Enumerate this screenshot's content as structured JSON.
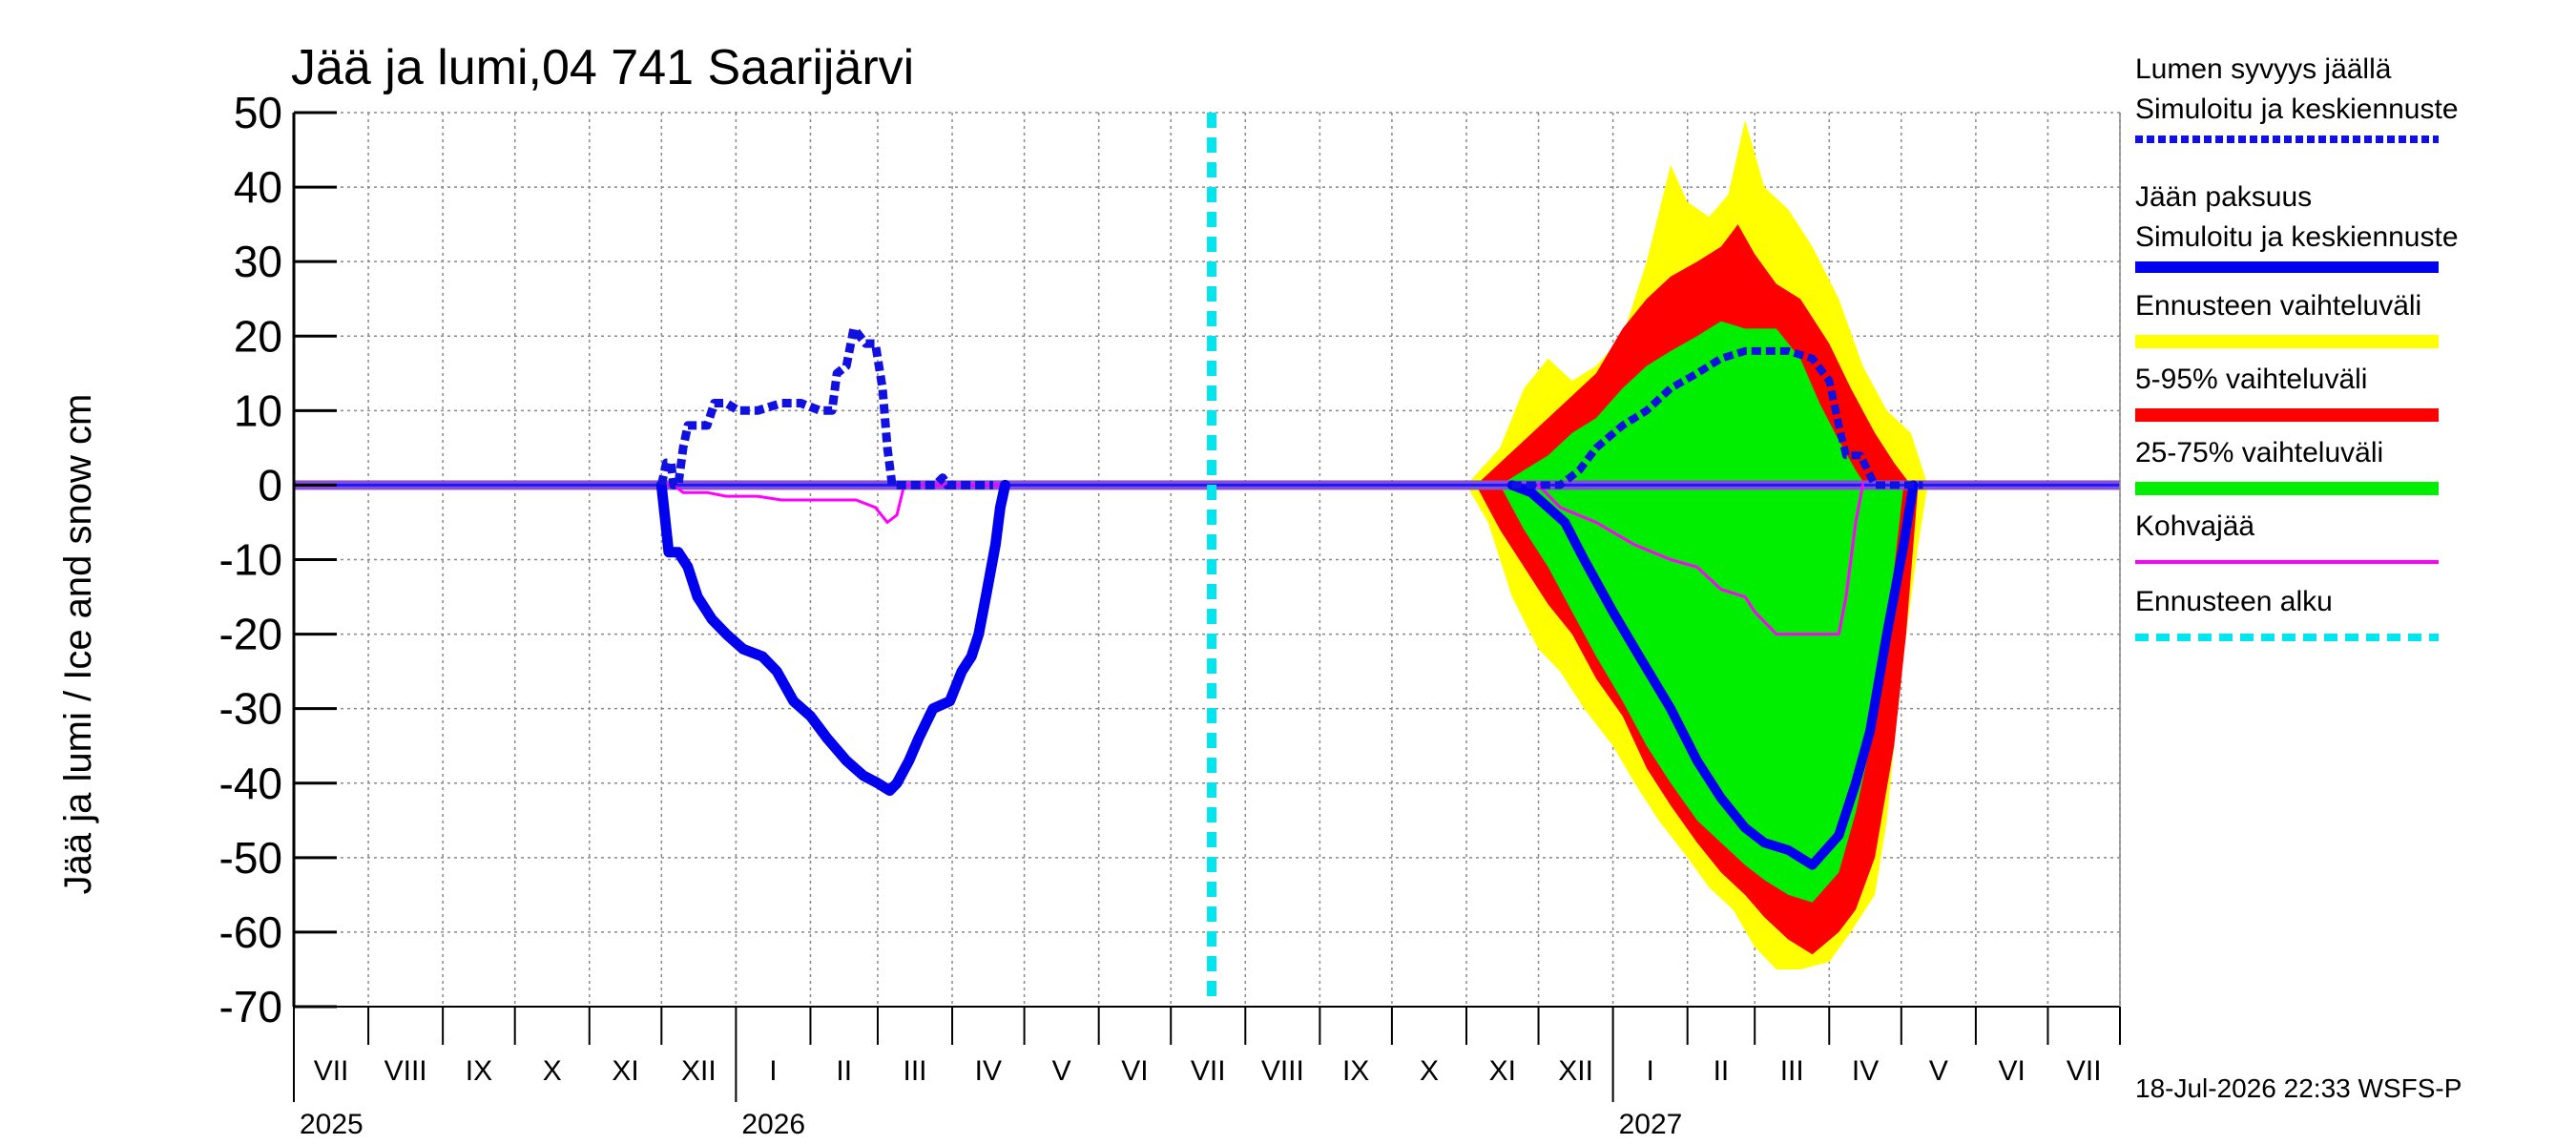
{
  "chart_data": {
    "type": "area",
    "title": "Jää ja lumi,04 741 Saarijärvi",
    "ylabel": "Jää ja lumi / Ice and snow    cm",
    "ylim": [
      -70,
      50
    ],
    "yticks": [
      50,
      40,
      30,
      20,
      10,
      0,
      -10,
      -20,
      -30,
      -40,
      -50,
      -60,
      -70
    ],
    "xlim": [
      "2025-07-01",
      "2027-07-31"
    ],
    "grid": true,
    "legend_position": "right",
    "months": [
      "VII",
      "VIII",
      "IX",
      "X",
      "XI",
      "XII",
      "I",
      "II",
      "III",
      "IV",
      "V",
      "VI",
      "VII",
      "VIII",
      "IX",
      "X",
      "XI",
      "XII",
      "I",
      "II",
      "III",
      "IV",
      "V",
      "VI",
      "VII"
    ],
    "years": [
      {
        "label": "2025",
        "date": "2025-07-01"
      },
      {
        "label": "2026",
        "date": "2026-01-01"
      },
      {
        "label": "2027",
        "date": "2027-01-01"
      }
    ],
    "forecast_start": "2026-07-18",
    "footer": "18-Jul-2026 22:33 WSFS-P",
    "colors": {
      "snow": "#1010e0",
      "ice": "#0000ee",
      "range_full": "#ffff00",
      "range_5_95": "#ff0000",
      "range_25_75": "#00ee00",
      "slush": "#ff00ff",
      "forecast_start": "#00e5ee",
      "zero_band": "#8a4fd8"
    },
    "legend": [
      {
        "line1": "Lumen syvyys jäällä",
        "line2": "Simuloitu ja keskiennuste",
        "color": "#1010e0",
        "style": "dotted"
      },
      {
        "line1": "Jään paksuus",
        "line2": "Simuloitu ja keskiennuste",
        "color": "#0000ee",
        "style": "solid"
      },
      {
        "line1": "Ennusteen vaihteluväli",
        "line2": "",
        "color": "#ffff00",
        "style": "thick"
      },
      {
        "line1": "5-95% vaihteluväli",
        "line2": "",
        "color": "#ff0000",
        "style": "thick"
      },
      {
        "line1": "25-75% vaihteluväli",
        "line2": "",
        "color": "#00ee00",
        "style": "thick"
      },
      {
        "line1": "Kohvajää",
        "line2": "",
        "color": "#ff00ff",
        "style": "thin"
      },
      {
        "line1": "Ennusteen alku",
        "line2": "",
        "color": "#00e5ee",
        "style": "dashed"
      }
    ],
    "series": [
      {
        "name": "Lumen syvyys jäällä",
        "role": "snow_history",
        "points": [
          [
            "2025-12-01",
            0
          ],
          [
            "2025-12-03",
            3
          ],
          [
            "2025-12-05",
            3
          ],
          [
            "2025-12-06",
            0
          ],
          [
            "2025-12-08",
            0
          ],
          [
            "2025-12-10",
            5
          ],
          [
            "2025-12-12",
            8
          ],
          [
            "2025-12-20",
            8
          ],
          [
            "2025-12-23",
            11
          ],
          [
            "2025-12-28",
            11
          ],
          [
            "2026-01-02",
            10
          ],
          [
            "2026-01-10",
            10
          ],
          [
            "2026-01-20",
            11
          ],
          [
            "2026-01-28",
            11
          ],
          [
            "2026-02-05",
            10
          ],
          [
            "2026-02-10",
            10
          ],
          [
            "2026-02-12",
            15
          ],
          [
            "2026-02-16",
            16
          ],
          [
            "2026-02-19",
            21
          ],
          [
            "2026-02-24",
            19
          ],
          [
            "2026-02-28",
            19
          ],
          [
            "2026-03-03",
            13
          ],
          [
            "2026-03-05",
            5
          ],
          [
            "2026-03-07",
            0
          ],
          [
            "2026-03-25",
            0
          ],
          [
            "2026-03-28",
            1
          ],
          [
            "2026-03-30",
            0
          ],
          [
            "2026-04-18",
            0
          ]
        ]
      },
      {
        "name": "Jään paksuus",
        "role": "ice_history",
        "points": [
          [
            "2025-12-01",
            0
          ],
          [
            "2025-12-04",
            -9
          ],
          [
            "2025-12-08",
            -9
          ],
          [
            "2025-12-12",
            -11
          ],
          [
            "2025-12-16",
            -15
          ],
          [
            "2025-12-22",
            -18
          ],
          [
            "2025-12-28",
            -20
          ],
          [
            "2026-01-04",
            -22
          ],
          [
            "2026-01-12",
            -23
          ],
          [
            "2026-01-18",
            -25
          ],
          [
            "2026-01-25",
            -29
          ],
          [
            "2026-02-01",
            -31
          ],
          [
            "2026-02-08",
            -34
          ],
          [
            "2026-02-16",
            -37
          ],
          [
            "2026-02-23",
            -39
          ],
          [
            "2026-03-01",
            -40
          ],
          [
            "2026-03-06",
            -41
          ],
          [
            "2026-03-09",
            -40
          ],
          [
            "2026-03-14",
            -37
          ],
          [
            "2026-03-18",
            -34
          ],
          [
            "2026-03-24",
            -30
          ],
          [
            "2026-03-31",
            -29
          ],
          [
            "2026-04-05",
            -25
          ],
          [
            "2026-04-09",
            -23
          ],
          [
            "2026-04-12",
            -20
          ],
          [
            "2026-04-15",
            -15
          ],
          [
            "2026-04-19",
            -8
          ],
          [
            "2026-04-21",
            -3
          ],
          [
            "2026-04-23",
            0
          ]
        ]
      },
      {
        "name": "Kohvajää",
        "role": "slush_history",
        "points": [
          [
            "2025-12-01",
            0
          ],
          [
            "2025-12-06",
            0
          ],
          [
            "2025-12-10",
            -1
          ],
          [
            "2025-12-20",
            -1
          ],
          [
            "2025-12-28",
            -1.5
          ],
          [
            "2026-01-10",
            -1.5
          ],
          [
            "2026-01-20",
            -2
          ],
          [
            "2026-02-20",
            -2
          ],
          [
            "2026-02-28",
            -3
          ],
          [
            "2026-03-05",
            -5
          ],
          [
            "2026-03-09",
            -4
          ],
          [
            "2026-03-12",
            0
          ],
          [
            "2026-04-23",
            0
          ]
        ]
      },
      {
        "name": "Ennusteen vaihteluväli",
        "role": "range_full",
        "upper": [
          [
            "2026-11-01",
            0
          ],
          [
            "2026-11-15",
            5
          ],
          [
            "2026-11-25",
            13
          ],
          [
            "2026-12-05",
            17
          ],
          [
            "2026-12-15",
            14
          ],
          [
            "2026-12-25",
            16
          ],
          [
            "2027-01-05",
            20
          ],
          [
            "2027-01-15",
            30
          ],
          [
            "2027-01-25",
            43
          ],
          [
            "2027-02-01",
            38
          ],
          [
            "2027-02-10",
            36
          ],
          [
            "2027-02-18",
            39
          ],
          [
            "2027-02-25",
            49
          ],
          [
            "2027-03-05",
            40
          ],
          [
            "2027-03-15",
            37
          ],
          [
            "2027-03-25",
            32
          ],
          [
            "2027-04-05",
            25
          ],
          [
            "2027-04-15",
            16
          ],
          [
            "2027-04-25",
            10
          ],
          [
            "2027-05-05",
            7
          ],
          [
            "2027-05-12",
            0
          ]
        ],
        "lower": [
          [
            "2026-11-01",
            0
          ],
          [
            "2026-11-10",
            -5
          ],
          [
            "2026-11-20",
            -15
          ],
          [
            "2026-12-01",
            -22
          ],
          [
            "2026-12-10",
            -25
          ],
          [
            "2026-12-20",
            -30
          ],
          [
            "2027-01-01",
            -35
          ],
          [
            "2027-01-10",
            -40
          ],
          [
            "2027-01-20",
            -45
          ],
          [
            "2027-02-01",
            -50
          ],
          [
            "2027-02-10",
            -54
          ],
          [
            "2027-02-20",
            -57
          ],
          [
            "2027-03-01",
            -62
          ],
          [
            "2027-03-10",
            -65
          ],
          [
            "2027-03-20",
            -65
          ],
          [
            "2027-04-01",
            -64
          ],
          [
            "2027-04-10",
            -60
          ],
          [
            "2027-04-20",
            -55
          ],
          [
            "2027-04-25",
            -45
          ],
          [
            "2027-05-01",
            -25
          ],
          [
            "2027-05-08",
            -8
          ],
          [
            "2027-05-12",
            0
          ]
        ]
      },
      {
        "name": "5-95% vaihteluväli",
        "role": "range_5_95",
        "upper": [
          [
            "2026-11-05",
            0
          ],
          [
            "2026-11-15",
            3
          ],
          [
            "2026-11-25",
            6
          ],
          [
            "2026-12-05",
            9
          ],
          [
            "2026-12-15",
            12
          ],
          [
            "2026-12-25",
            15
          ],
          [
            "2027-01-05",
            21
          ],
          [
            "2027-01-15",
            25
          ],
          [
            "2027-01-25",
            28
          ],
          [
            "2027-02-05",
            30
          ],
          [
            "2027-02-15",
            32
          ],
          [
            "2027-02-22",
            35
          ],
          [
            "2027-03-01",
            31
          ],
          [
            "2027-03-10",
            27
          ],
          [
            "2027-03-20",
            25
          ],
          [
            "2027-04-01",
            19
          ],
          [
            "2027-04-10",
            13
          ],
          [
            "2027-04-20",
            7
          ],
          [
            "2027-04-28",
            3
          ],
          [
            "2027-05-05",
            0
          ]
        ],
        "lower": [
          [
            "2026-11-05",
            0
          ],
          [
            "2026-11-15",
            -6
          ],
          [
            "2026-11-25",
            -11
          ],
          [
            "2026-12-05",
            -16
          ],
          [
            "2026-12-15",
            -20
          ],
          [
            "2026-12-25",
            -26
          ],
          [
            "2027-01-05",
            -31
          ],
          [
            "2027-01-15",
            -38
          ],
          [
            "2027-01-25",
            -43
          ],
          [
            "2027-02-05",
            -48
          ],
          [
            "2027-02-15",
            -52
          ],
          [
            "2027-02-25",
            -55
          ],
          [
            "2027-03-05",
            -58
          ],
          [
            "2027-03-15",
            -61
          ],
          [
            "2027-03-25",
            -63
          ],
          [
            "2027-04-05",
            -60
          ],
          [
            "2027-04-12",
            -57
          ],
          [
            "2027-04-20",
            -50
          ],
          [
            "2027-04-28",
            -35
          ],
          [
            "2027-05-03",
            -20
          ],
          [
            "2027-05-08",
            0
          ]
        ]
      },
      {
        "name": "25-75% vaihteluväli",
        "role": "range_25_75",
        "upper": [
          [
            "2026-11-15",
            0
          ],
          [
            "2026-11-25",
            2
          ],
          [
            "2026-12-05",
            4
          ],
          [
            "2026-12-15",
            7
          ],
          [
            "2026-12-25",
            9
          ],
          [
            "2027-01-05",
            13
          ],
          [
            "2027-01-15",
            16
          ],
          [
            "2027-01-25",
            18
          ],
          [
            "2027-02-05",
            20
          ],
          [
            "2027-02-15",
            22
          ],
          [
            "2027-02-25",
            21
          ],
          [
            "2027-03-10",
            21
          ],
          [
            "2027-03-20",
            17
          ],
          [
            "2027-03-28",
            11
          ],
          [
            "2027-04-05",
            6
          ],
          [
            "2027-04-12",
            2
          ],
          [
            "2027-04-16",
            0
          ]
        ],
        "lower": [
          [
            "2026-11-15",
            0
          ],
          [
            "2026-11-25",
            -6
          ],
          [
            "2026-12-05",
            -11
          ],
          [
            "2026-12-15",
            -17
          ],
          [
            "2026-12-25",
            -23
          ],
          [
            "2027-01-05",
            -29
          ],
          [
            "2027-01-15",
            -35
          ],
          [
            "2027-01-25",
            -40
          ],
          [
            "2027-02-05",
            -45
          ],
          [
            "2027-02-15",
            -48
          ],
          [
            "2027-02-25",
            -51
          ],
          [
            "2027-03-05",
            -53
          ],
          [
            "2027-03-15",
            -55
          ],
          [
            "2027-03-25",
            -56
          ],
          [
            "2027-04-05",
            -52
          ],
          [
            "2027-04-12",
            -44
          ],
          [
            "2027-04-20",
            -32
          ],
          [
            "2027-04-27",
            -14
          ],
          [
            "2027-05-02",
            0
          ]
        ]
      },
      {
        "name": "Lumen syvyys jäällä – keskiennuste",
        "role": "snow_forecast",
        "points": [
          [
            "2026-11-20",
            0
          ],
          [
            "2026-12-10",
            0
          ],
          [
            "2026-12-18",
            2
          ],
          [
            "2026-12-25",
            5
          ],
          [
            "2027-01-05",
            8
          ],
          [
            "2027-01-15",
            10
          ],
          [
            "2027-01-25",
            13
          ],
          [
            "2027-02-05",
            15
          ],
          [
            "2027-02-15",
            17
          ],
          [
            "2027-02-25",
            18
          ],
          [
            "2027-03-05",
            18
          ],
          [
            "2027-03-15",
            18
          ],
          [
            "2027-03-25",
            17
          ],
          [
            "2027-04-01",
            14
          ],
          [
            "2027-04-05",
            8
          ],
          [
            "2027-04-08",
            4
          ],
          [
            "2027-04-14",
            4
          ],
          [
            "2027-04-20",
            0
          ],
          [
            "2027-05-10",
            0
          ]
        ]
      },
      {
        "name": "Jään paksuus – keskiennuste",
        "role": "ice_forecast",
        "points": [
          [
            "2026-11-20",
            0
          ],
          [
            "2026-11-28",
            -1
          ],
          [
            "2026-12-05",
            -3
          ],
          [
            "2026-12-12",
            -5
          ],
          [
            "2026-12-20",
            -10
          ],
          [
            "2027-01-01",
            -17
          ],
          [
            "2027-01-12",
            -23
          ],
          [
            "2027-01-25",
            -30
          ],
          [
            "2027-02-05",
            -37
          ],
          [
            "2027-02-15",
            -42
          ],
          [
            "2027-02-25",
            -46
          ],
          [
            "2027-03-05",
            -48
          ],
          [
            "2027-03-15",
            -49
          ],
          [
            "2027-03-25",
            -51
          ],
          [
            "2027-04-05",
            -47
          ],
          [
            "2027-04-12",
            -40
          ],
          [
            "2027-04-18",
            -33
          ],
          [
            "2027-04-25",
            -20
          ],
          [
            "2027-05-02",
            -8
          ],
          [
            "2027-05-06",
            0
          ]
        ]
      },
      {
        "name": "Kohvajää – keskiennuste",
        "role": "slush_forecast",
        "points": [
          [
            "2026-12-01",
            0
          ],
          [
            "2026-12-10",
            -3
          ],
          [
            "2026-12-25",
            -5
          ],
          [
            "2027-01-10",
            -8
          ],
          [
            "2027-01-25",
            -10
          ],
          [
            "2027-02-05",
            -11
          ],
          [
            "2027-02-15",
            -14
          ],
          [
            "2027-02-25",
            -15
          ],
          [
            "2027-03-01",
            -17
          ],
          [
            "2027-03-10",
            -20
          ],
          [
            "2027-04-05",
            -20
          ],
          [
            "2027-04-08",
            -15
          ],
          [
            "2027-04-12",
            -5
          ],
          [
            "2027-04-15",
            0
          ]
        ]
      }
    ]
  }
}
